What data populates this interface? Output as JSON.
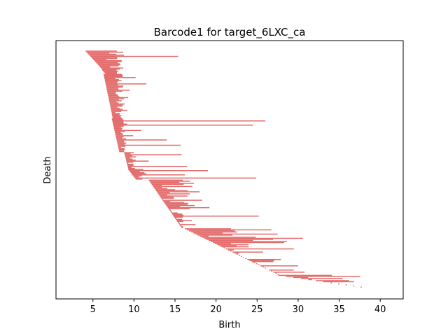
{
  "chart_data": {
    "type": "barcode",
    "title": "Barcode1 for target_6LXC_ca",
    "xlabel": "Birth",
    "ylabel": "Death",
    "xlim": [
      0.5,
      42.8
    ],
    "xticks": [
      5,
      10,
      15,
      20,
      25,
      30,
      35,
      40
    ],
    "y_ticks_visible": false,
    "grid": false,
    "color": "#e36b6b",
    "n_bars": 224,
    "bar_groups": [
      {
        "from": 0,
        "to": 18,
        "start_from": 4.1,
        "start_to": 6.1,
        "end_min": 6.2,
        "end_max": 8.8,
        "long_ends": [
          8.7,
          15.4,
          8.5,
          8.3,
          8.7
        ]
      },
      {
        "from": 18,
        "to": 22,
        "start_from": 6.1,
        "start_to": 6.5,
        "end_min": 7.8,
        "end_max": 8.3,
        "long_ends": []
      },
      {
        "from": 22,
        "to": 60,
        "start_from": 6.3,
        "start_to": 7.3,
        "end_min": 7.6,
        "end_max": 8.8,
        "long_ends": [
          10.2,
          11.5,
          9.5,
          9.3,
          8.9,
          9.2
        ]
      },
      {
        "from": 60,
        "to": 64,
        "start_from": 7.3,
        "start_to": 7.4,
        "end_min": 8.2,
        "end_max": 8.6,
        "long_ends": []
      },
      {
        "from": 64,
        "to": 96,
        "start_from": 7.3,
        "start_to": 8.2,
        "end_min": 8.4,
        "end_max": 9.2,
        "long_ends": [
          26.0,
          24.5,
          10.9,
          9.9,
          14.0,
          15.7,
          8.9
        ]
      },
      {
        "from": 96,
        "to": 112,
        "start_from": 8.8,
        "start_to": 9.3,
        "end_min": 9.3,
        "end_max": 10.3,
        "long_ends": [
          15.8,
          11.8,
          16.5
        ]
      },
      {
        "from": 112,
        "to": 122,
        "start_from": 9.3,
        "start_to": 10.2,
        "end_min": 10.4,
        "end_max": 11.5,
        "long_ends": [
          19.0,
          16.2,
          24.9
        ]
      },
      {
        "from": 122,
        "to": 168,
        "start_from": 11.8,
        "start_to": 15.8,
        "end_min": 13.0,
        "end_max": 17.4,
        "long_ends": [
          17.3,
          18.0,
          18.3,
          19.2,
          25.2,
          17.5
        ]
      },
      {
        "from": 168,
        "to": 212,
        "start_from": 16.2,
        "start_to": 27.5,
        "end_min": 17.5,
        "end_max": 31.0,
        "long_ends": [
          27.5,
          22.5,
          23.0,
          25.5
        ]
      },
      {
        "from": 212,
        "to": 224,
        "start_from": 27.6,
        "start_to": 37.6,
        "end_min": 29.0,
        "end_max": 37.8,
        "long_ends": [
          36.8
        ]
      }
    ]
  }
}
